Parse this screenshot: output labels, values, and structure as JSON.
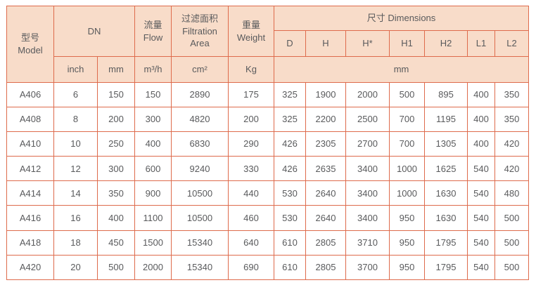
{
  "colors": {
    "header_bg": "#f8dcc9",
    "border": "#de6b4c",
    "text": "#595a5c",
    "body_bg": "#ffffff"
  },
  "header": {
    "model": "型号\nModel",
    "dn": "DN",
    "flow": "流量\nFlow",
    "filtration_area": "过滤面积\nFiltration\nArea",
    "weight": "重量\nWeight",
    "dimensions": "尺寸 Dimensions",
    "dim_cols": [
      "D",
      "H",
      "H*",
      "H1",
      "H2",
      "L1",
      "L2"
    ],
    "units": {
      "dn_inch": "inch",
      "dn_mm": "mm",
      "flow": "m³/h",
      "area": "cm²",
      "weight": "Kg",
      "dims": "mm"
    }
  },
  "rows": [
    {
      "model": "A406",
      "values": [
        6,
        150,
        150,
        2890,
        175,
        325,
        1900,
        2000,
        500,
        895,
        400,
        350
      ]
    },
    {
      "model": "A408",
      "values": [
        8,
        200,
        300,
        4820,
        200,
        325,
        2200,
        2500,
        700,
        1195,
        400,
        350
      ]
    },
    {
      "model": "A410",
      "values": [
        10,
        250,
        400,
        6830,
        290,
        426,
        2305,
        2700,
        700,
        1305,
        400,
        420
      ]
    },
    {
      "model": "A412",
      "values": [
        12,
        300,
        600,
        9240,
        330,
        426,
        2635,
        3400,
        1000,
        1625,
        540,
        420
      ]
    },
    {
      "model": "A414",
      "values": [
        14,
        350,
        900,
        10500,
        440,
        530,
        2640,
        3400,
        1000,
        1630,
        540,
        480
      ]
    },
    {
      "model": "A416",
      "values": [
        16,
        400,
        1100,
        10500,
        460,
        530,
        2640,
        3400,
        950,
        1630,
        540,
        500
      ]
    },
    {
      "model": "A418",
      "values": [
        18,
        450,
        1500,
        15340,
        640,
        610,
        2805,
        3710,
        950,
        1795,
        540,
        500
      ]
    },
    {
      "model": "A420",
      "values": [
        20,
        500,
        2000,
        15340,
        690,
        610,
        2805,
        3700,
        950,
        1795,
        540,
        500
      ]
    }
  ]
}
